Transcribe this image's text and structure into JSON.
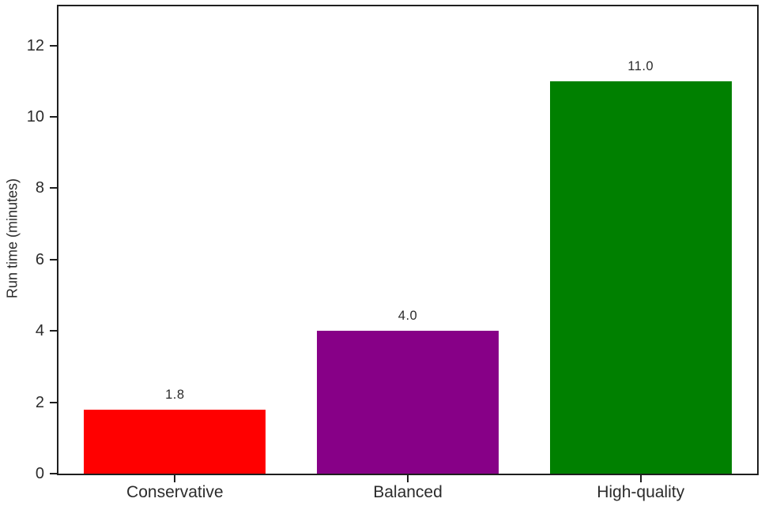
{
  "chart_data": {
    "type": "bar",
    "categories": [
      "Conservative",
      "Balanced",
      "High-quality"
    ],
    "values": [
      1.8,
      4.0,
      11.0
    ],
    "bar_labels": [
      "1.8",
      "4.0",
      "11.0"
    ],
    "bar_colors": [
      "#ff0000",
      "#870087",
      "#008000"
    ],
    "title": "",
    "xlabel": "",
    "ylabel": "Run time (minutes)",
    "ylim": [
      0,
      13.1
    ],
    "yticks": [
      0,
      2,
      4,
      6,
      8,
      10,
      12
    ],
    "bar_width_frac": 0.78,
    "grid": false,
    "legend_position": "none",
    "spine_color": "#1f1f1f",
    "text_color": "#2b2b2b",
    "background_color": "#ffffff"
  }
}
